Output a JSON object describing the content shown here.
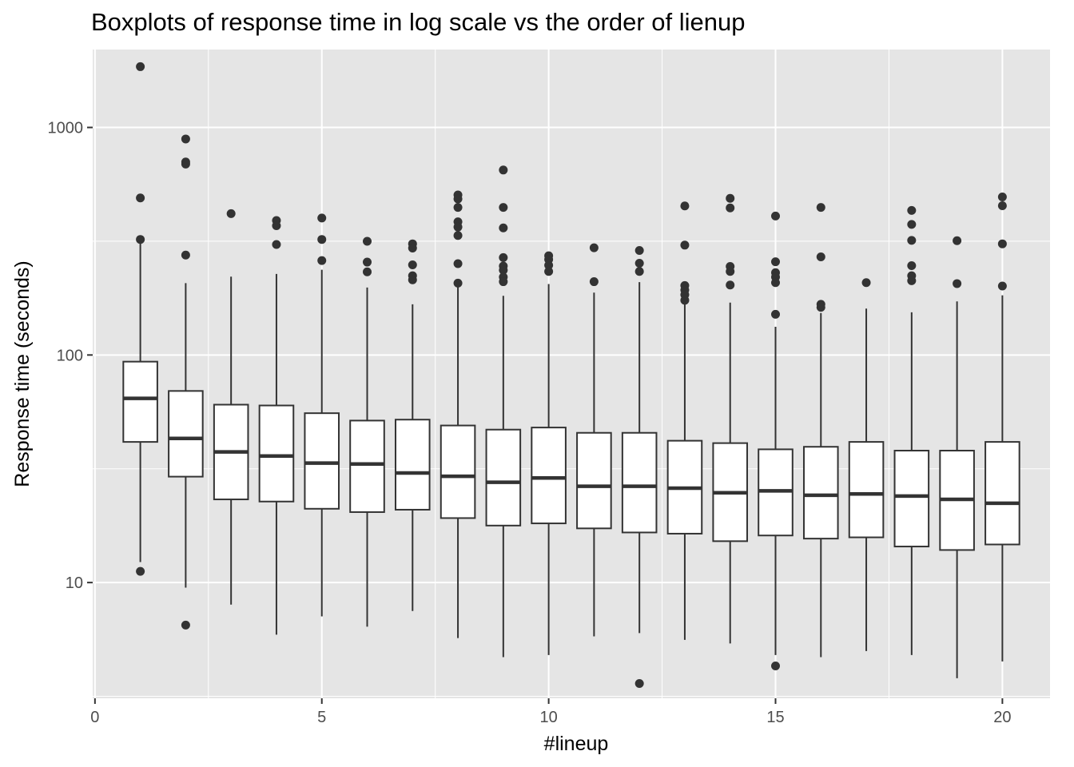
{
  "chart_data": {
    "type": "boxplot",
    "title": "Boxplots of response time in log scale vs the order of lienup",
    "xlabel": "#lineup",
    "ylabel": "Response time (seconds)",
    "y_scale": "log10",
    "xlim": [
      -0.05,
      21.05
    ],
    "ylim": [
      3.1,
      2200
    ],
    "x_ticks": [
      0,
      5,
      10,
      15,
      20
    ],
    "y_ticks": [
      10,
      100,
      1000
    ],
    "grid": true,
    "colors": {
      "panel_background": "#e5e5e5",
      "grid": "#ffffff",
      "box_fill": "#ffffff",
      "box_stroke": "#333333",
      "outlier": "#333333"
    },
    "boxes": [
      {
        "x": 1,
        "lower_whisker": 12.3,
        "q1": 41.5,
        "median": 64.5,
        "q3": 93.5,
        "upper_whisker": 315,
        "outliers": [
          1850,
          490,
          322,
          11.2
        ]
      },
      {
        "x": 2,
        "lower_whisker": 9.5,
        "q1": 29.2,
        "median": 43,
        "q3": 69.5,
        "upper_whisker": 207,
        "outliers": [
          890,
          705,
          690,
          275,
          6.5
        ]
      },
      {
        "x": 3,
        "lower_whisker": 8.0,
        "q1": 23.2,
        "median": 37.5,
        "q3": 60.5,
        "upper_whisker": 221,
        "outliers": [
          418
        ]
      },
      {
        "x": 4,
        "lower_whisker": 5.9,
        "q1": 22.7,
        "median": 36,
        "q3": 60,
        "upper_whisker": 227,
        "outliers": [
          390,
          370,
          306
        ]
      },
      {
        "x": 5,
        "lower_whisker": 7.1,
        "q1": 21.1,
        "median": 33.5,
        "q3": 55.5,
        "upper_whisker": 237,
        "outliers": [
          400,
          322,
          260
        ]
      },
      {
        "x": 6,
        "lower_whisker": 6.4,
        "q1": 20.4,
        "median": 33.2,
        "q3": 51.5,
        "upper_whisker": 198,
        "outliers": [
          316,
          256,
          232
        ]
      },
      {
        "x": 7,
        "lower_whisker": 7.5,
        "q1": 20.9,
        "median": 30.3,
        "q3": 52,
        "upper_whisker": 167,
        "outliers": [
          308,
          295,
          249,
          223,
          214
        ]
      },
      {
        "x": 8,
        "lower_whisker": 5.7,
        "q1": 19.2,
        "median": 29.3,
        "q3": 49,
        "upper_whisker": 203,
        "outliers": [
          505,
          485,
          445,
          385,
          365,
          335,
          252,
          207
        ]
      },
      {
        "x": 9,
        "lower_whisker": 4.7,
        "q1": 17.8,
        "median": 27.6,
        "q3": 47,
        "upper_whisker": 182,
        "outliers": [
          650,
          445,
          362,
          268,
          246,
          236,
          220,
          210
        ]
      },
      {
        "x": 10,
        "lower_whisker": 4.8,
        "q1": 18.2,
        "median": 28.8,
        "q3": 48,
        "upper_whisker": 205,
        "outliers": [
          273,
          263,
          248,
          233
        ]
      },
      {
        "x": 11,
        "lower_whisker": 5.8,
        "q1": 17.3,
        "median": 26.5,
        "q3": 45.5,
        "upper_whisker": 188,
        "outliers": [
          296,
          210
        ]
      },
      {
        "x": 12,
        "lower_whisker": 6.0,
        "q1": 16.6,
        "median": 26.5,
        "q3": 45.5,
        "upper_whisker": 209,
        "outliers": [
          288,
          253,
          233,
          3.6
        ]
      },
      {
        "x": 13,
        "lower_whisker": 5.6,
        "q1": 16.4,
        "median": 26,
        "q3": 42,
        "upper_whisker": 170,
        "outliers": [
          452,
          304,
          202,
          193,
          184,
          174
        ]
      },
      {
        "x": 14,
        "lower_whisker": 5.4,
        "q1": 15.2,
        "median": 24.8,
        "q3": 41,
        "upper_whisker": 170,
        "outliers": [
          488,
          443,
          245,
          233,
          203
        ]
      },
      {
        "x": 15,
        "lower_whisker": 4.8,
        "q1": 16.1,
        "median": 25.3,
        "q3": 38.5,
        "upper_whisker": 133,
        "outliers": [
          408,
          257,
          230,
          220,
          208,
          151,
          4.3
        ]
      },
      {
        "x": 16,
        "lower_whisker": 4.7,
        "q1": 15.6,
        "median": 24.2,
        "q3": 39.5,
        "upper_whisker": 153,
        "outliers": [
          445,
          270,
          167,
          162
        ]
      },
      {
        "x": 17,
        "lower_whisker": 5.0,
        "q1": 15.8,
        "median": 24.5,
        "q3": 41.5,
        "upper_whisker": 160,
        "outliers": [
          208
        ]
      },
      {
        "x": 18,
        "lower_whisker": 4.8,
        "q1": 14.4,
        "median": 24,
        "q3": 38,
        "upper_whisker": 154,
        "outliers": [
          432,
          375,
          319,
          247,
          223,
          212
        ]
      },
      {
        "x": 19,
        "lower_whisker": 3.8,
        "q1": 13.9,
        "median": 23.2,
        "q3": 38,
        "upper_whisker": 172,
        "outliers": [
          318,
          206
        ]
      },
      {
        "x": 20,
        "lower_whisker": 4.5,
        "q1": 14.7,
        "median": 22.3,
        "q3": 41.5,
        "upper_whisker": 183,
        "outliers": [
          495,
          453,
          308,
          201
        ]
      }
    ]
  }
}
